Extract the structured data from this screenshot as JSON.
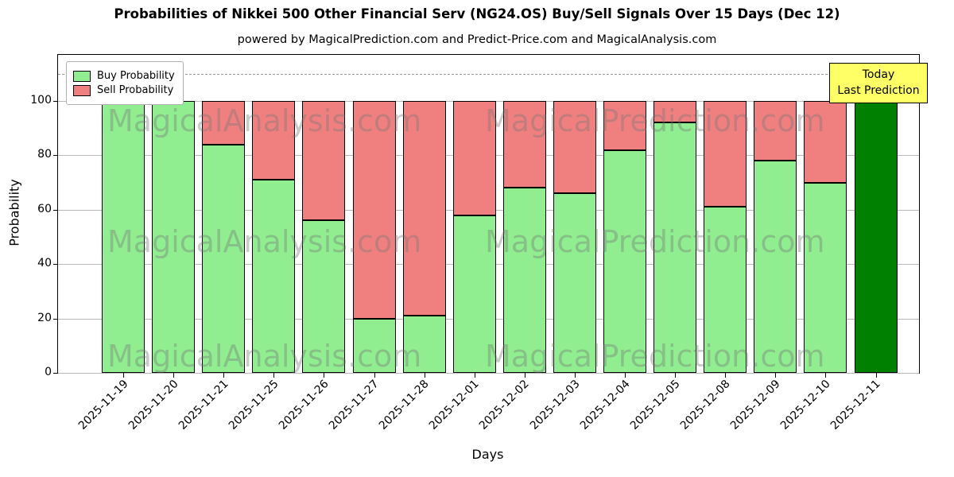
{
  "title": "Probabilities of Nikkei 500 Other Financial Serv (NG24.OS) Buy/Sell Signals Over 15 Days (Dec 12)",
  "subtitle": "powered by MagicalPrediction.com and Predict-Price.com and MagicalAnalysis.com",
  "legend": {
    "buy": "Buy Probability",
    "sell": "Sell Probability"
  },
  "today_box": {
    "line1": "Today",
    "line2": "Last Prediction",
    "bg": "#ffff66"
  },
  "axes": {
    "xlabel": "Days",
    "ylabel": "Probability",
    "yticks": [
      0,
      20,
      40,
      60,
      80,
      100
    ],
    "ylim": [
      0,
      117
    ],
    "dashed_line_y": 110,
    "grid": "horizontal"
  },
  "watermark": {
    "texts": [
      "MagicalAnalysis.com",
      "MagicalPrediction.com"
    ],
    "color": "#787878"
  },
  "chart_data": {
    "type": "bar",
    "stacked": true,
    "title": "Probabilities of Nikkei 500 Other Financial Serv (NG24.OS) Buy/Sell Signals Over 15 Days (Dec 12)",
    "xlabel": "Days",
    "ylabel": "Probability",
    "ylim": [
      0,
      117
    ],
    "categories": [
      "2025-11-19",
      "2025-11-20",
      "2025-11-21",
      "2025-11-25",
      "2025-11-26",
      "2025-11-27",
      "2025-11-28",
      "2025-12-01",
      "2025-12-02",
      "2025-12-03",
      "2025-12-04",
      "2025-12-05",
      "2025-12-08",
      "2025-12-09",
      "2025-12-10",
      "2025-12-11"
    ],
    "series": [
      {
        "name": "Buy Probability",
        "color": "#90ee90",
        "values": [
          100,
          100,
          84,
          71,
          56,
          20,
          21,
          58,
          68,
          66,
          82,
          92,
          61,
          78,
          70,
          100
        ]
      },
      {
        "name": "Sell Probability",
        "color": "#f08080",
        "values": [
          0,
          0,
          16,
          29,
          44,
          80,
          79,
          42,
          32,
          34,
          18,
          8,
          39,
          22,
          30,
          0
        ]
      }
    ],
    "today_index": 15,
    "today_color": "#008000"
  }
}
